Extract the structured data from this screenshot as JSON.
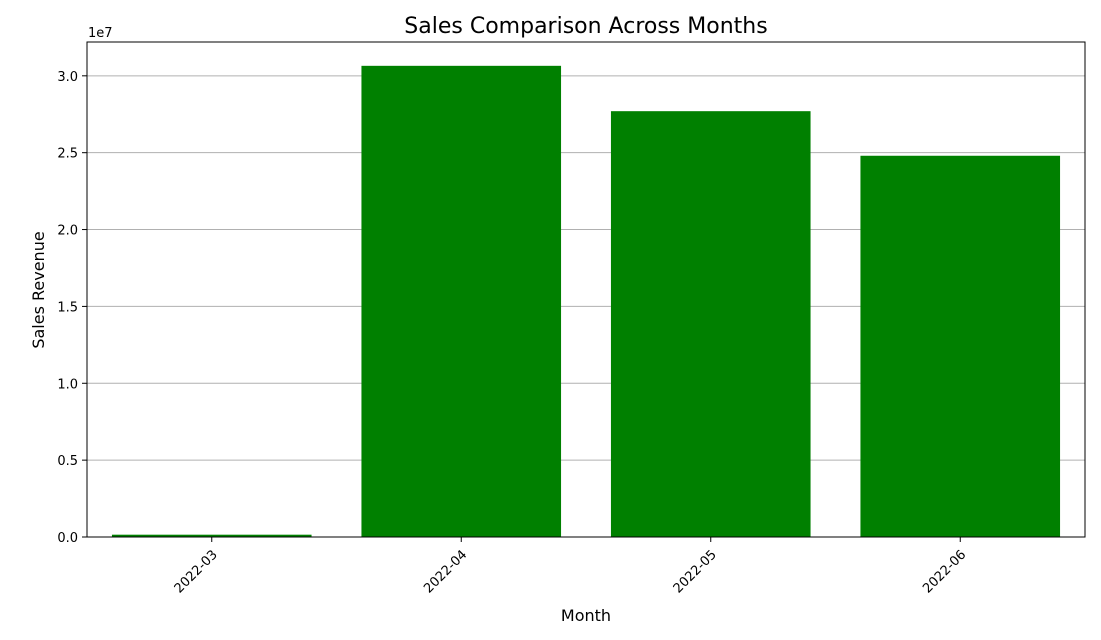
{
  "chart_data": {
    "type": "bar",
    "title": "Sales Comparison Across Months",
    "xlabel": "Month",
    "ylabel": "Sales Revenue",
    "offset_label": "1e7",
    "categories": [
      "2022-03",
      "2022-04",
      "2022-05",
      "2022-06"
    ],
    "values": [
      150000,
      30650000,
      27700000,
      24800000
    ],
    "ylim": [
      0,
      32200000
    ],
    "yticks": [
      0,
      5000000,
      10000000,
      15000000,
      20000000,
      25000000,
      30000000
    ],
    "ytick_labels": [
      "0.0",
      "0.5",
      "1.0",
      "1.5",
      "2.0",
      "2.5",
      "3.0"
    ],
    "grid": "horizontal",
    "bar_color": "#008000",
    "grid_color": "#b0b0b0",
    "xtick_rotation_deg": 45
  }
}
